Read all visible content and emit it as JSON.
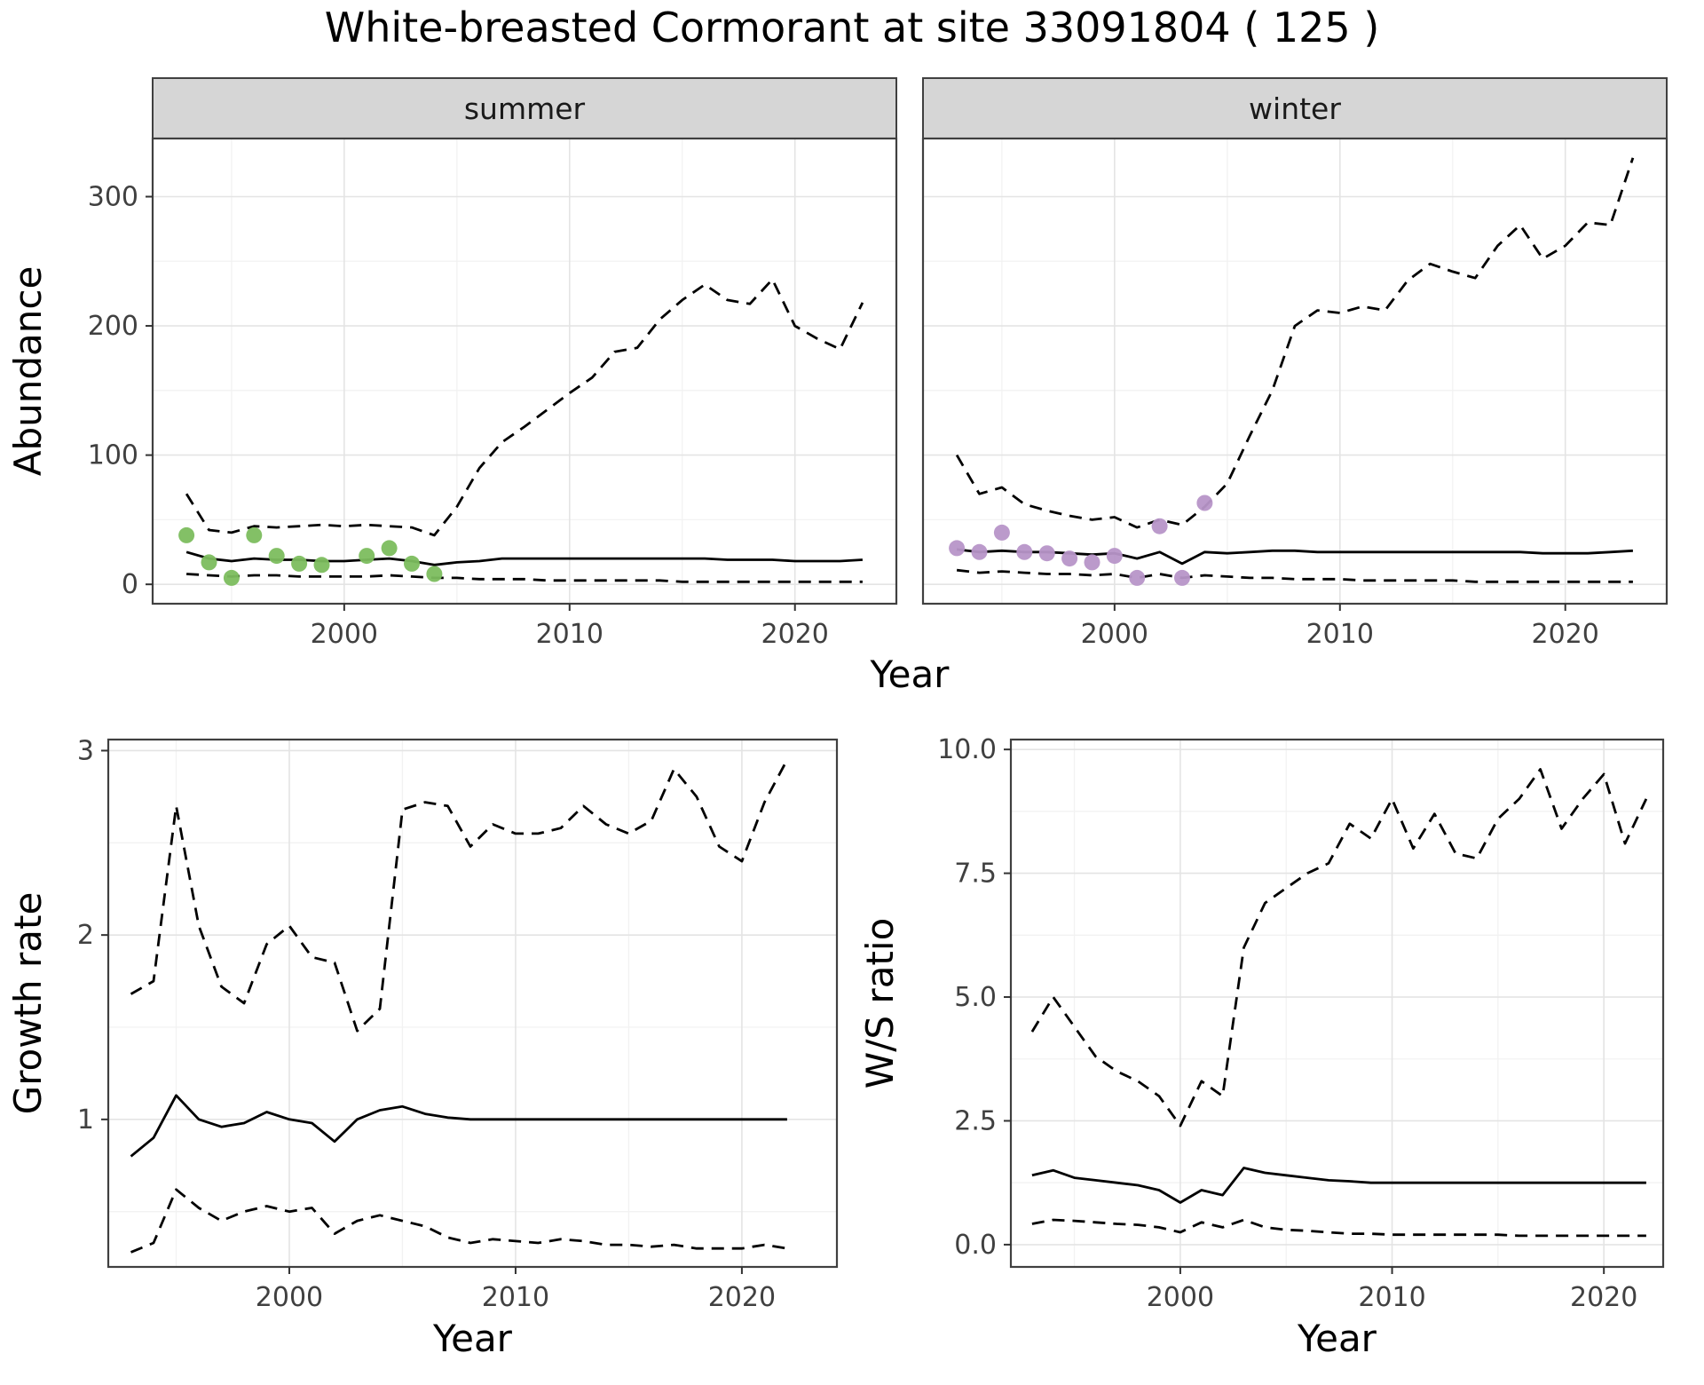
{
  "title": "White-breasted Cormorant at site 33091804 ( 125 )",
  "facet_labels": [
    "summer",
    "winter"
  ],
  "colors": {
    "line": "#000000",
    "summer_points": "#7cbd5e",
    "winter_points": "#b795c8",
    "strip_bg": "#d6d6d6",
    "panel_border": "#404040",
    "grid_major": "#e4e4e4",
    "grid_minor": "#f2f2f2",
    "tick_text": "#404040",
    "tick_mark": "#333333"
  },
  "chart_data": [
    {
      "id": "abundance-summer",
      "type": "line",
      "facet_label": "summer",
      "xlabel": "Year",
      "ylabel": "Abundance",
      "legend": "none",
      "xlim": [
        1991.5,
        2024.5
      ],
      "ylim": [
        -15,
        345
      ],
      "xticks": [
        2000,
        2010,
        2020
      ],
      "yticks": [
        0,
        100,
        200,
        300
      ],
      "ytick_labels": [
        "0",
        "100",
        "200",
        "300"
      ],
      "x_minor": [
        1995,
        2005,
        2015
      ],
      "y_minor": [
        50,
        150,
        250
      ],
      "x": [
        1993,
        1994,
        1995,
        1996,
        1997,
        1998,
        1999,
        2000,
        2001,
        2002,
        2003,
        2004,
        2005,
        2006,
        2007,
        2008,
        2009,
        2010,
        2011,
        2012,
        2013,
        2014,
        2015,
        2016,
        2017,
        2018,
        2019,
        2020,
        2021,
        2022,
        2023
      ],
      "series": [
        {
          "name": "upper-credible",
          "style": "dashed",
          "values": [
            70,
            42,
            40,
            45,
            44,
            45,
            46,
            45,
            46,
            45,
            44,
            38,
            60,
            90,
            110,
            122,
            135,
            148,
            160,
            180,
            183,
            205,
            220,
            232,
            220,
            217,
            236,
            200,
            190,
            182,
            218
          ]
        },
        {
          "name": "median",
          "style": "solid",
          "values": [
            25,
            20,
            18,
            20,
            19,
            19,
            18,
            18,
            19,
            20,
            18,
            15,
            17,
            18,
            20,
            20,
            20,
            20,
            20,
            20,
            20,
            20,
            20,
            20,
            19,
            19,
            19,
            18,
            18,
            18,
            19
          ]
        },
        {
          "name": "lower-credible",
          "style": "dashed",
          "values": [
            8,
            7,
            6,
            7,
            7,
            6,
            6,
            6,
            6,
            7,
            6,
            5,
            5,
            4,
            4,
            4,
            3,
            3,
            3,
            3,
            3,
            3,
            2,
            2,
            2,
            2,
            2,
            2,
            2,
            2,
            2
          ]
        }
      ],
      "points": {
        "name": "observed-counts",
        "color_key": "summer_points",
        "x": [
          1993,
          1994,
          1995,
          1996,
          1997,
          1998,
          1999,
          2001,
          2002,
          2003,
          2004
        ],
        "y": [
          38,
          17,
          5,
          38,
          22,
          16,
          15,
          22,
          28,
          16,
          8
        ]
      }
    },
    {
      "id": "abundance-winter",
      "type": "line",
      "facet_label": "winter",
      "xlabel": "Year",
      "ylabel": "Abundance",
      "legend": "none",
      "xlim": [
        1991.5,
        2024.5
      ],
      "ylim": [
        -15,
        345
      ],
      "xticks": [
        2000,
        2010,
        2020
      ],
      "yticks": [
        0,
        100,
        200,
        300
      ],
      "ytick_labels": [
        "0",
        "100",
        "200",
        "300"
      ],
      "x_minor": [
        1995,
        2005,
        2015
      ],
      "y_minor": [
        50,
        150,
        250
      ],
      "x": [
        1993,
        1994,
        1995,
        1996,
        1997,
        1998,
        1999,
        2000,
        2001,
        2002,
        2003,
        2004,
        2005,
        2006,
        2007,
        2008,
        2009,
        2010,
        2011,
        2012,
        2013,
        2014,
        2015,
        2016,
        2017,
        2018,
        2019,
        2020,
        2021,
        2022,
        2023
      ],
      "series": [
        {
          "name": "upper-credible",
          "style": "dashed",
          "values": [
            100,
            70,
            75,
            62,
            57,
            53,
            50,
            52,
            44,
            50,
            46,
            60,
            78,
            115,
            150,
            200,
            212,
            210,
            215,
            212,
            235,
            248,
            242,
            237,
            262,
            278,
            252,
            262,
            280,
            278,
            330
          ]
        },
        {
          "name": "median",
          "style": "solid",
          "values": [
            27,
            25,
            26,
            25,
            25,
            24,
            23,
            24,
            20,
            25,
            16,
            25,
            24,
            25,
            26,
            26,
            25,
            25,
            25,
            25,
            25,
            25,
            25,
            25,
            25,
            25,
            24,
            24,
            24,
            25,
            26
          ]
        },
        {
          "name": "lower-credible",
          "style": "dashed",
          "values": [
            11,
            9,
            10,
            9,
            8,
            8,
            7,
            8,
            5,
            8,
            5,
            7,
            6,
            5,
            5,
            4,
            4,
            4,
            3,
            3,
            3,
            3,
            3,
            2,
            2,
            2,
            2,
            2,
            2,
            2,
            2
          ]
        }
      ],
      "points": {
        "name": "observed-counts",
        "color_key": "winter_points",
        "x": [
          1993,
          1994,
          1995,
          1996,
          1997,
          1998,
          1999,
          2000,
          2001,
          2002,
          2003,
          2004
        ],
        "y": [
          28,
          25,
          40,
          25,
          24,
          20,
          17,
          22,
          5,
          45,
          5,
          63
        ]
      }
    },
    {
      "id": "growth-rate",
      "type": "line",
      "facet_label": "",
      "xlabel": "Year",
      "ylabel": "Growth rate",
      "legend": "none",
      "xlim": [
        1992,
        2024.2
      ],
      "ylim": [
        0.2,
        3.06
      ],
      "xticks": [
        2000,
        2010,
        2020
      ],
      "yticks": [
        1,
        2,
        3
      ],
      "ytick_labels": [
        "1",
        "2",
        "3"
      ],
      "x_minor": [
        1995,
        2005,
        2015
      ],
      "y_minor": [
        0.5,
        1.5,
        2.5
      ],
      "x": [
        1993,
        1994,
        1995,
        1996,
        1997,
        1998,
        1999,
        2000,
        2001,
        2002,
        2003,
        2004,
        2005,
        2006,
        2007,
        2008,
        2009,
        2010,
        2011,
        2012,
        2013,
        2014,
        2015,
        2016,
        2017,
        2018,
        2019,
        2020,
        2021,
        2022
      ],
      "series": [
        {
          "name": "upper-credible",
          "style": "dashed",
          "values": [
            1.68,
            1.75,
            2.7,
            2.05,
            1.72,
            1.63,
            1.95,
            2.05,
            1.88,
            1.85,
            1.48,
            1.6,
            2.68,
            2.72,
            2.7,
            2.48,
            2.6,
            2.55,
            2.55,
            2.58,
            2.7,
            2.6,
            2.55,
            2.62,
            2.9,
            2.75,
            2.48,
            2.4,
            2.72,
            2.95
          ]
        },
        {
          "name": "median",
          "style": "solid",
          "values": [
            0.8,
            0.9,
            1.13,
            1.0,
            0.96,
            0.98,
            1.04,
            1.0,
            0.98,
            0.88,
            1.0,
            1.05,
            1.07,
            1.03,
            1.01,
            1.0,
            1.0,
            1.0,
            1.0,
            1.0,
            1.0,
            1.0,
            1.0,
            1.0,
            1.0,
            1.0,
            1.0,
            1.0,
            1.0,
            1.0
          ]
        },
        {
          "name": "lower-credible",
          "style": "dashed",
          "values": [
            0.28,
            0.33,
            0.62,
            0.52,
            0.45,
            0.5,
            0.53,
            0.5,
            0.52,
            0.38,
            0.45,
            0.48,
            0.45,
            0.42,
            0.36,
            0.33,
            0.35,
            0.34,
            0.33,
            0.35,
            0.34,
            0.32,
            0.32,
            0.31,
            0.32,
            0.3,
            0.3,
            0.3,
            0.32,
            0.3
          ]
        }
      ]
    },
    {
      "id": "ws-ratio",
      "type": "line",
      "facet_label": "",
      "xlabel": "Year",
      "ylabel": "W/S ratio",
      "legend": "none",
      "xlim": [
        1992,
        2022.8
      ],
      "ylim": [
        -0.45,
        10.2
      ],
      "xticks": [
        2000,
        2010,
        2020
      ],
      "yticks": [
        0,
        2.5,
        5,
        7.5,
        10
      ],
      "ytick_labels": [
        "0.0",
        "2.5",
        "5.0",
        "7.5",
        "10.0"
      ],
      "x_minor": [
        1995,
        2005,
        2015
      ],
      "y_minor": [
        1.25,
        3.75,
        6.25,
        8.75
      ],
      "x": [
        1993,
        1994,
        1995,
        1996,
        1997,
        1998,
        1999,
        2000,
        2001,
        2002,
        2003,
        2004,
        2005,
        2006,
        2007,
        2008,
        2009,
        2010,
        2011,
        2012,
        2013,
        2014,
        2015,
        2016,
        2017,
        2018,
        2019,
        2020,
        2021,
        2022
      ],
      "series": [
        {
          "name": "upper-credible",
          "style": "dashed",
          "values": [
            4.3,
            5.0,
            4.4,
            3.8,
            3.5,
            3.3,
            3.0,
            2.4,
            3.3,
            3.0,
            6.0,
            6.9,
            7.2,
            7.5,
            7.7,
            8.5,
            8.2,
            9.0,
            8.0,
            8.7,
            7.9,
            7.8,
            8.6,
            9.0,
            9.6,
            8.4,
            9.0,
            9.5,
            8.1,
            9.0
          ]
        },
        {
          "name": "median",
          "style": "solid",
          "values": [
            1.4,
            1.5,
            1.35,
            1.3,
            1.25,
            1.2,
            1.1,
            0.85,
            1.1,
            1.0,
            1.55,
            1.45,
            1.4,
            1.35,
            1.3,
            1.28,
            1.25,
            1.25,
            1.25,
            1.25,
            1.25,
            1.25,
            1.25,
            1.25,
            1.25,
            1.25,
            1.25,
            1.25,
            1.25,
            1.25
          ]
        },
        {
          "name": "lower-credible",
          "style": "dashed",
          "values": [
            0.42,
            0.5,
            0.48,
            0.45,
            0.42,
            0.4,
            0.35,
            0.25,
            0.45,
            0.35,
            0.5,
            0.35,
            0.3,
            0.28,
            0.25,
            0.22,
            0.22,
            0.2,
            0.2,
            0.2,
            0.2,
            0.2,
            0.2,
            0.18,
            0.18,
            0.18,
            0.18,
            0.18,
            0.18,
            0.18
          ]
        }
      ]
    }
  ]
}
